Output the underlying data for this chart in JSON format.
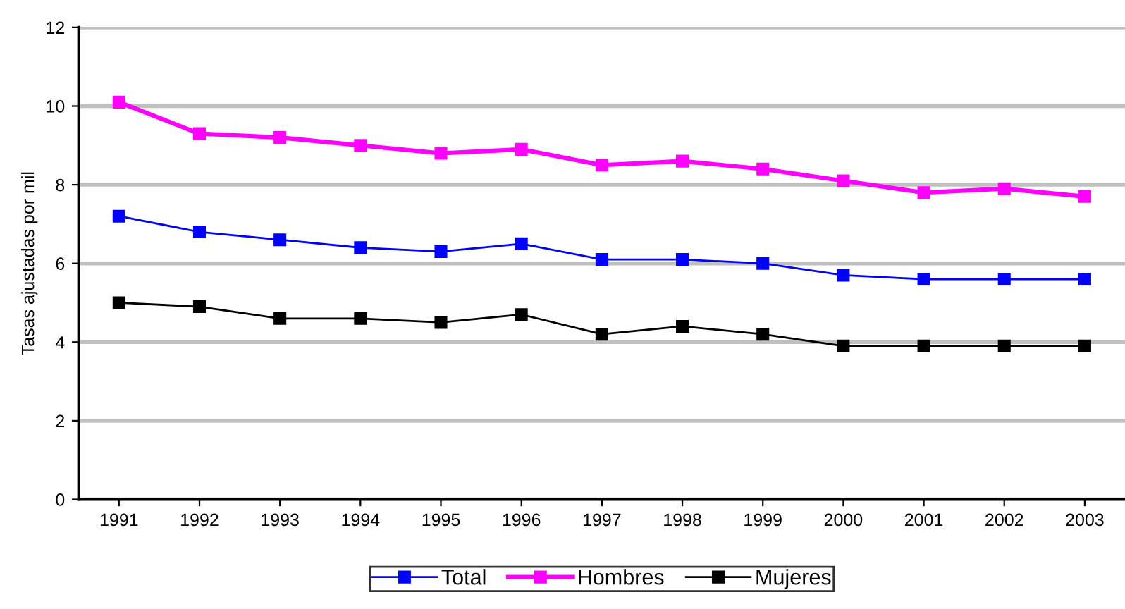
{
  "chart_data": {
    "type": "line",
    "ylabel": "Tasas ajustadas por mil",
    "categories": [
      "1991",
      "1992",
      "1993",
      "1994",
      "1995",
      "1996",
      "1997",
      "1998",
      "1999",
      "2000",
      "2001",
      "2002",
      "2003"
    ],
    "series": [
      {
        "name": "Total",
        "color": "#0000ff",
        "values": [
          7.2,
          6.8,
          6.6,
          6.4,
          6.3,
          6.5,
          6.1,
          6.1,
          6.0,
          5.7,
          5.6,
          5.6,
          5.6
        ]
      },
      {
        "name": "Hombres",
        "color": "#ff00ff",
        "values": [
          10.1,
          9.3,
          9.2,
          9.0,
          8.8,
          8.9,
          8.5,
          8.6,
          8.4,
          8.1,
          7.8,
          7.9,
          7.7
        ]
      },
      {
        "name": "Mujeres",
        "color": "#000000",
        "values": [
          5.0,
          4.9,
          4.6,
          4.6,
          4.5,
          4.7,
          4.2,
          4.4,
          4.2,
          3.9,
          3.9,
          3.9,
          3.9
        ]
      }
    ],
    "ylim": [
      0,
      12
    ],
    "yticks": [
      0,
      2,
      4,
      6,
      8,
      10,
      12
    ],
    "grid": "y",
    "legend": "bottom",
    "marker": "square",
    "line_style": "solid"
  }
}
